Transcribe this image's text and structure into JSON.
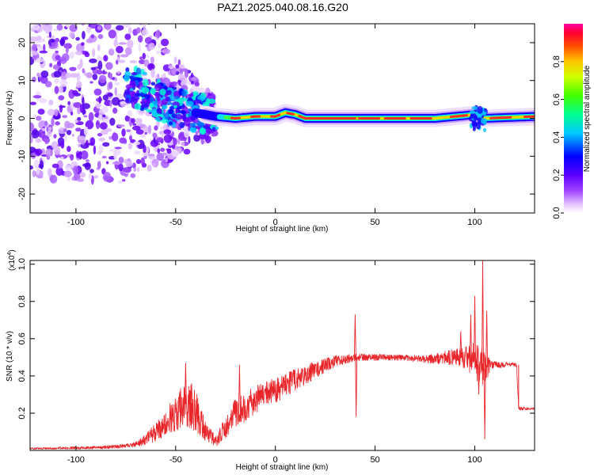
{
  "title": "PAZ1.2025.040.08.16.G20",
  "chart_data": [
    {
      "type": "heatmap",
      "xlabel": "Height of straight line (km)",
      "ylabel": "Frequency (Hz)",
      "xlim": [
        -123,
        130
      ],
      "ylim": [
        -25,
        25
      ],
      "xticks": [
        -100,
        -50,
        0,
        50,
        100
      ],
      "yticks": [
        -20,
        -10,
        0,
        10,
        20
      ],
      "colorbar": {
        "label": "Normalized spectral amplitude",
        "range": [
          0,
          1
        ],
        "ticks": [
          "0.0",
          "0.2",
          "0.4",
          "0.6",
          "0.8"
        ],
        "tick_values": [
          0,
          0.2,
          0.4,
          0.6,
          0.8
        ],
        "colormap": "rainbow: white → violet → blue → cyan → green → yellow → orange → red → magenta"
      },
      "ridge": {
        "description": "dominant frequency ridge",
        "points": [
          [
            -68,
            8
          ],
          [
            -60,
            5
          ],
          [
            -50,
            3
          ],
          [
            -40,
            1.5
          ],
          [
            -30,
            0.5
          ],
          [
            -20,
            0
          ],
          [
            -10,
            0.5
          ],
          [
            0,
            0.5
          ],
          [
            5,
            1.5
          ],
          [
            10,
            1
          ],
          [
            15,
            0
          ],
          [
            40,
            0
          ],
          [
            80,
            0
          ],
          [
            90,
            0.5
          ],
          [
            100,
            1
          ],
          [
            105,
            0
          ],
          [
            130,
            0.5
          ]
        ]
      },
      "scatter_region": {
        "x_range": [
          -123,
          -30
        ],
        "y_range": [
          -25,
          25
        ]
      }
    },
    {
      "type": "line",
      "xlabel": "Height of straight line (km)",
      "ylabel": "SNR (10 * v/v)",
      "ylabel_scale": "(x10",
      "ylabel_scale_exp": "4",
      "ylabel_scale_close": ")",
      "xlim": [
        -123,
        130
      ],
      "ylim": [
        0,
        1.02
      ],
      "xticks": [
        -100,
        -50,
        0,
        50,
        100
      ],
      "yticks": [
        "0.2",
        "0.4",
        "0.6",
        "0.8",
        "1.0"
      ],
      "ytick_values": [
        0.2,
        0.4,
        0.6,
        0.8,
        1.0
      ],
      "color": "#e8262a",
      "envelope": [
        [
          -123,
          0.01,
          0.005
        ],
        [
          -90,
          0.015,
          0.008
        ],
        [
          -80,
          0.02,
          0.01
        ],
        [
          -70,
          0.03,
          0.015
        ],
        [
          -65,
          0.06,
          0.03
        ],
        [
          -60,
          0.1,
          0.05
        ],
        [
          -55,
          0.15,
          0.07
        ],
        [
          -50,
          0.2,
          0.1
        ],
        [
          -45,
          0.25,
          0.12
        ],
        [
          -40,
          0.22,
          0.12
        ],
        [
          -35,
          0.1,
          0.05
        ],
        [
          -30,
          0.05,
          0.03
        ],
        [
          -25,
          0.12,
          0.06
        ],
        [
          -20,
          0.2,
          0.08
        ],
        [
          -10,
          0.27,
          0.08
        ],
        [
          0,
          0.32,
          0.07
        ],
        [
          10,
          0.38,
          0.06
        ],
        [
          20,
          0.43,
          0.05
        ],
        [
          30,
          0.48,
          0.03
        ],
        [
          40,
          0.5,
          0.02
        ],
        [
          60,
          0.5,
          0.015
        ],
        [
          75,
          0.49,
          0.02
        ],
        [
          88,
          0.5,
          0.04
        ],
        [
          95,
          0.5,
          0.06
        ],
        [
          100,
          0.48,
          0.1
        ],
        [
          105,
          0.44,
          0.1
        ],
        [
          108,
          0.46,
          0.02
        ],
        [
          121,
          0.46,
          0.01
        ],
        [
          122,
          0.225,
          0.01
        ],
        [
          130,
          0.225,
          0.005
        ]
      ],
      "spikes": [
        [
          -45,
          0.47
        ],
        [
          -42,
          0.36
        ],
        [
          -39,
          0.23
        ],
        [
          -18,
          0.46
        ],
        [
          40,
          0.73
        ],
        [
          40.5,
          0.18
        ],
        [
          93,
          0.64
        ],
        [
          98,
          0.73
        ],
        [
          100,
          0.83
        ],
        [
          102,
          0.3
        ],
        [
          104,
          1.02
        ],
        [
          105,
          0.06
        ],
        [
          106,
          0.75
        ],
        [
          107,
          0.5
        ]
      ]
    }
  ]
}
